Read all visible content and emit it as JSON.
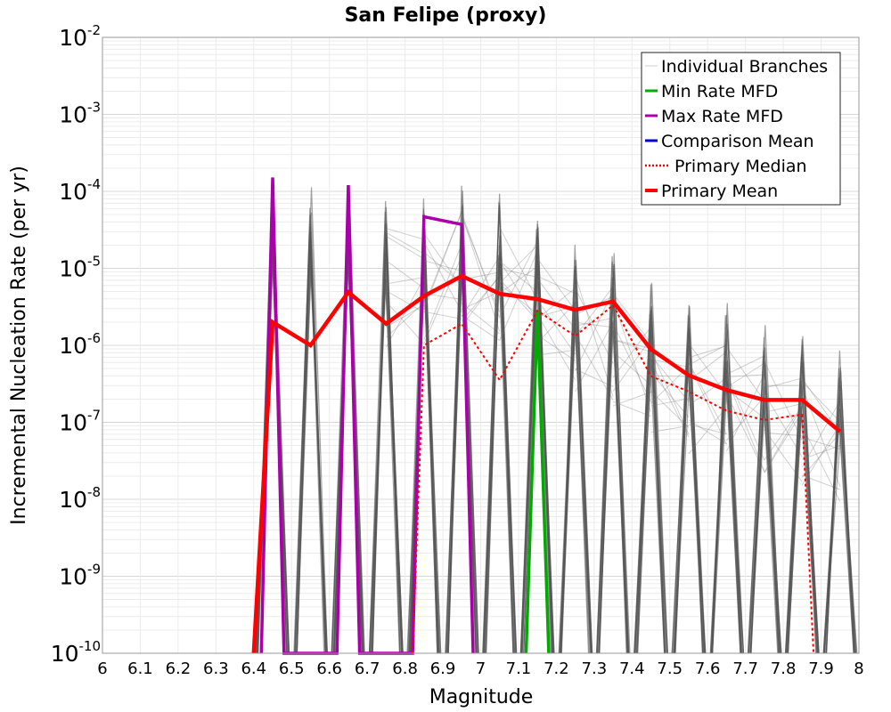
{
  "chart_data": {
    "type": "line",
    "title": "San Felipe (proxy)",
    "xlabel": "Magnitude",
    "ylabel": "Incremental Nucleation Rate (per yr)",
    "xlim": [
      6,
      8
    ],
    "ylim_log10": [
      -10,
      -2
    ],
    "y_scale": "log",
    "grid": true,
    "legend_position": "top-right",
    "x_tick_labels": [
      "6",
      "6.1",
      "6.2",
      "6.3",
      "6.4",
      "6.5",
      "6.6",
      "6.7",
      "6.8",
      "6.9",
      "7",
      "7.1",
      "7.2",
      "7.3",
      "7.4",
      "7.5",
      "7.6",
      "7.7",
      "7.8",
      "7.9",
      "8"
    ],
    "x_ticks": [
      6.0,
      6.1,
      6.2,
      6.3,
      6.4,
      6.5,
      6.6,
      6.7,
      6.8,
      6.9,
      7.0,
      7.1,
      7.2,
      7.3,
      7.4,
      7.5,
      7.6,
      7.7,
      7.8,
      7.9,
      8.0
    ],
    "y_ticks": [
      {
        "base": "10",
        "exp": "-2",
        "value": -2
      },
      {
        "base": "10",
        "exp": "-3",
        "value": -3
      },
      {
        "base": "10",
        "exp": "-4",
        "value": -4
      },
      {
        "base": "10",
        "exp": "-5",
        "value": -5
      },
      {
        "base": "10",
        "exp": "-6",
        "value": -6
      },
      {
        "base": "10",
        "exp": "-7",
        "value": -7
      },
      {
        "base": "10",
        "exp": "-8",
        "value": -8
      },
      {
        "base": "10",
        "exp": "-9",
        "value": -9
      },
      {
        "base": "10",
        "exp": "-10",
        "value": -10
      }
    ],
    "legend": [
      {
        "label": "Individual Branches",
        "color": "#cccccc",
        "style": "thin"
      },
      {
        "label": "Min Rate MFD",
        "color": "#00aa00",
        "style": "solid"
      },
      {
        "label": "Max Rate MFD",
        "color": "#aa00aa",
        "style": "solid"
      },
      {
        "label": "Comparison Mean",
        "color": "#0000dd",
        "style": "solid"
      },
      {
        "label": "Primary Median",
        "color": "#ff0000",
        "style": "dotted"
      },
      {
        "label": "Primary Mean",
        "color": "#ff0000",
        "style": "thick"
      }
    ],
    "series": [
      {
        "name": "Primary Mean",
        "color": "#ff0000",
        "x": [
          6.4,
          6.45,
          6.55,
          6.65,
          6.75,
          6.85,
          6.95,
          7.05,
          7.15,
          7.25,
          7.35,
          7.45,
          7.55,
          7.65,
          7.75,
          7.85,
          7.95
        ],
        "log10_y": [
          -10,
          -5.7,
          -6.0,
          -5.31,
          -5.72,
          -5.36,
          -5.1,
          -5.33,
          -5.4,
          -5.54,
          -5.43,
          -6.05,
          -6.39,
          -6.58,
          -6.71,
          -6.71,
          -7.12
        ]
      },
      {
        "name": "Primary Median",
        "color": "#ff0000",
        "x": [
          6.82,
          6.85,
          6.95,
          7.05,
          7.15,
          7.25,
          7.35,
          7.45,
          7.55,
          7.65,
          7.75,
          7.85,
          7.88
        ],
        "log10_y": [
          -10,
          -6.0,
          -5.72,
          -6.45,
          -5.55,
          -5.88,
          -5.48,
          -6.4,
          -6.6,
          -6.85,
          -6.97,
          -6.9,
          -10
        ]
      },
      {
        "name": "Max Rate MFD",
        "color": "#aa00aa",
        "x": [
          6.42,
          6.45,
          6.48,
          6.62,
          6.65,
          6.68,
          6.82,
          6.85,
          6.95,
          6.98
        ],
        "log10_y": [
          -10,
          -3.82,
          -10,
          -10,
          -3.92,
          -10,
          -10,
          -4.33,
          -4.43,
          -10
        ]
      },
      {
        "name": "Min Rate MFD",
        "color": "#00aa00",
        "x": [
          7.12,
          7.15,
          7.18
        ],
        "log10_y": [
          -10,
          -5.55,
          -10
        ]
      },
      {
        "name": "Individual Branches (peaks)",
        "color": "#555555",
        "x": [
          6.45,
          6.55,
          6.65,
          6.75,
          6.85,
          6.95,
          7.05,
          7.15,
          7.25,
          7.35,
          7.45,
          7.55,
          7.65,
          7.75,
          7.85,
          7.95
        ],
        "log10_y": [
          -3.85,
          -3.9,
          -3.92,
          -4.07,
          -4.08,
          -3.85,
          -3.95,
          -4.22,
          -4.62,
          -4.8,
          -5.15,
          -5.42,
          -5.45,
          -5.7,
          -5.88,
          -6.05
        ]
      }
    ]
  }
}
